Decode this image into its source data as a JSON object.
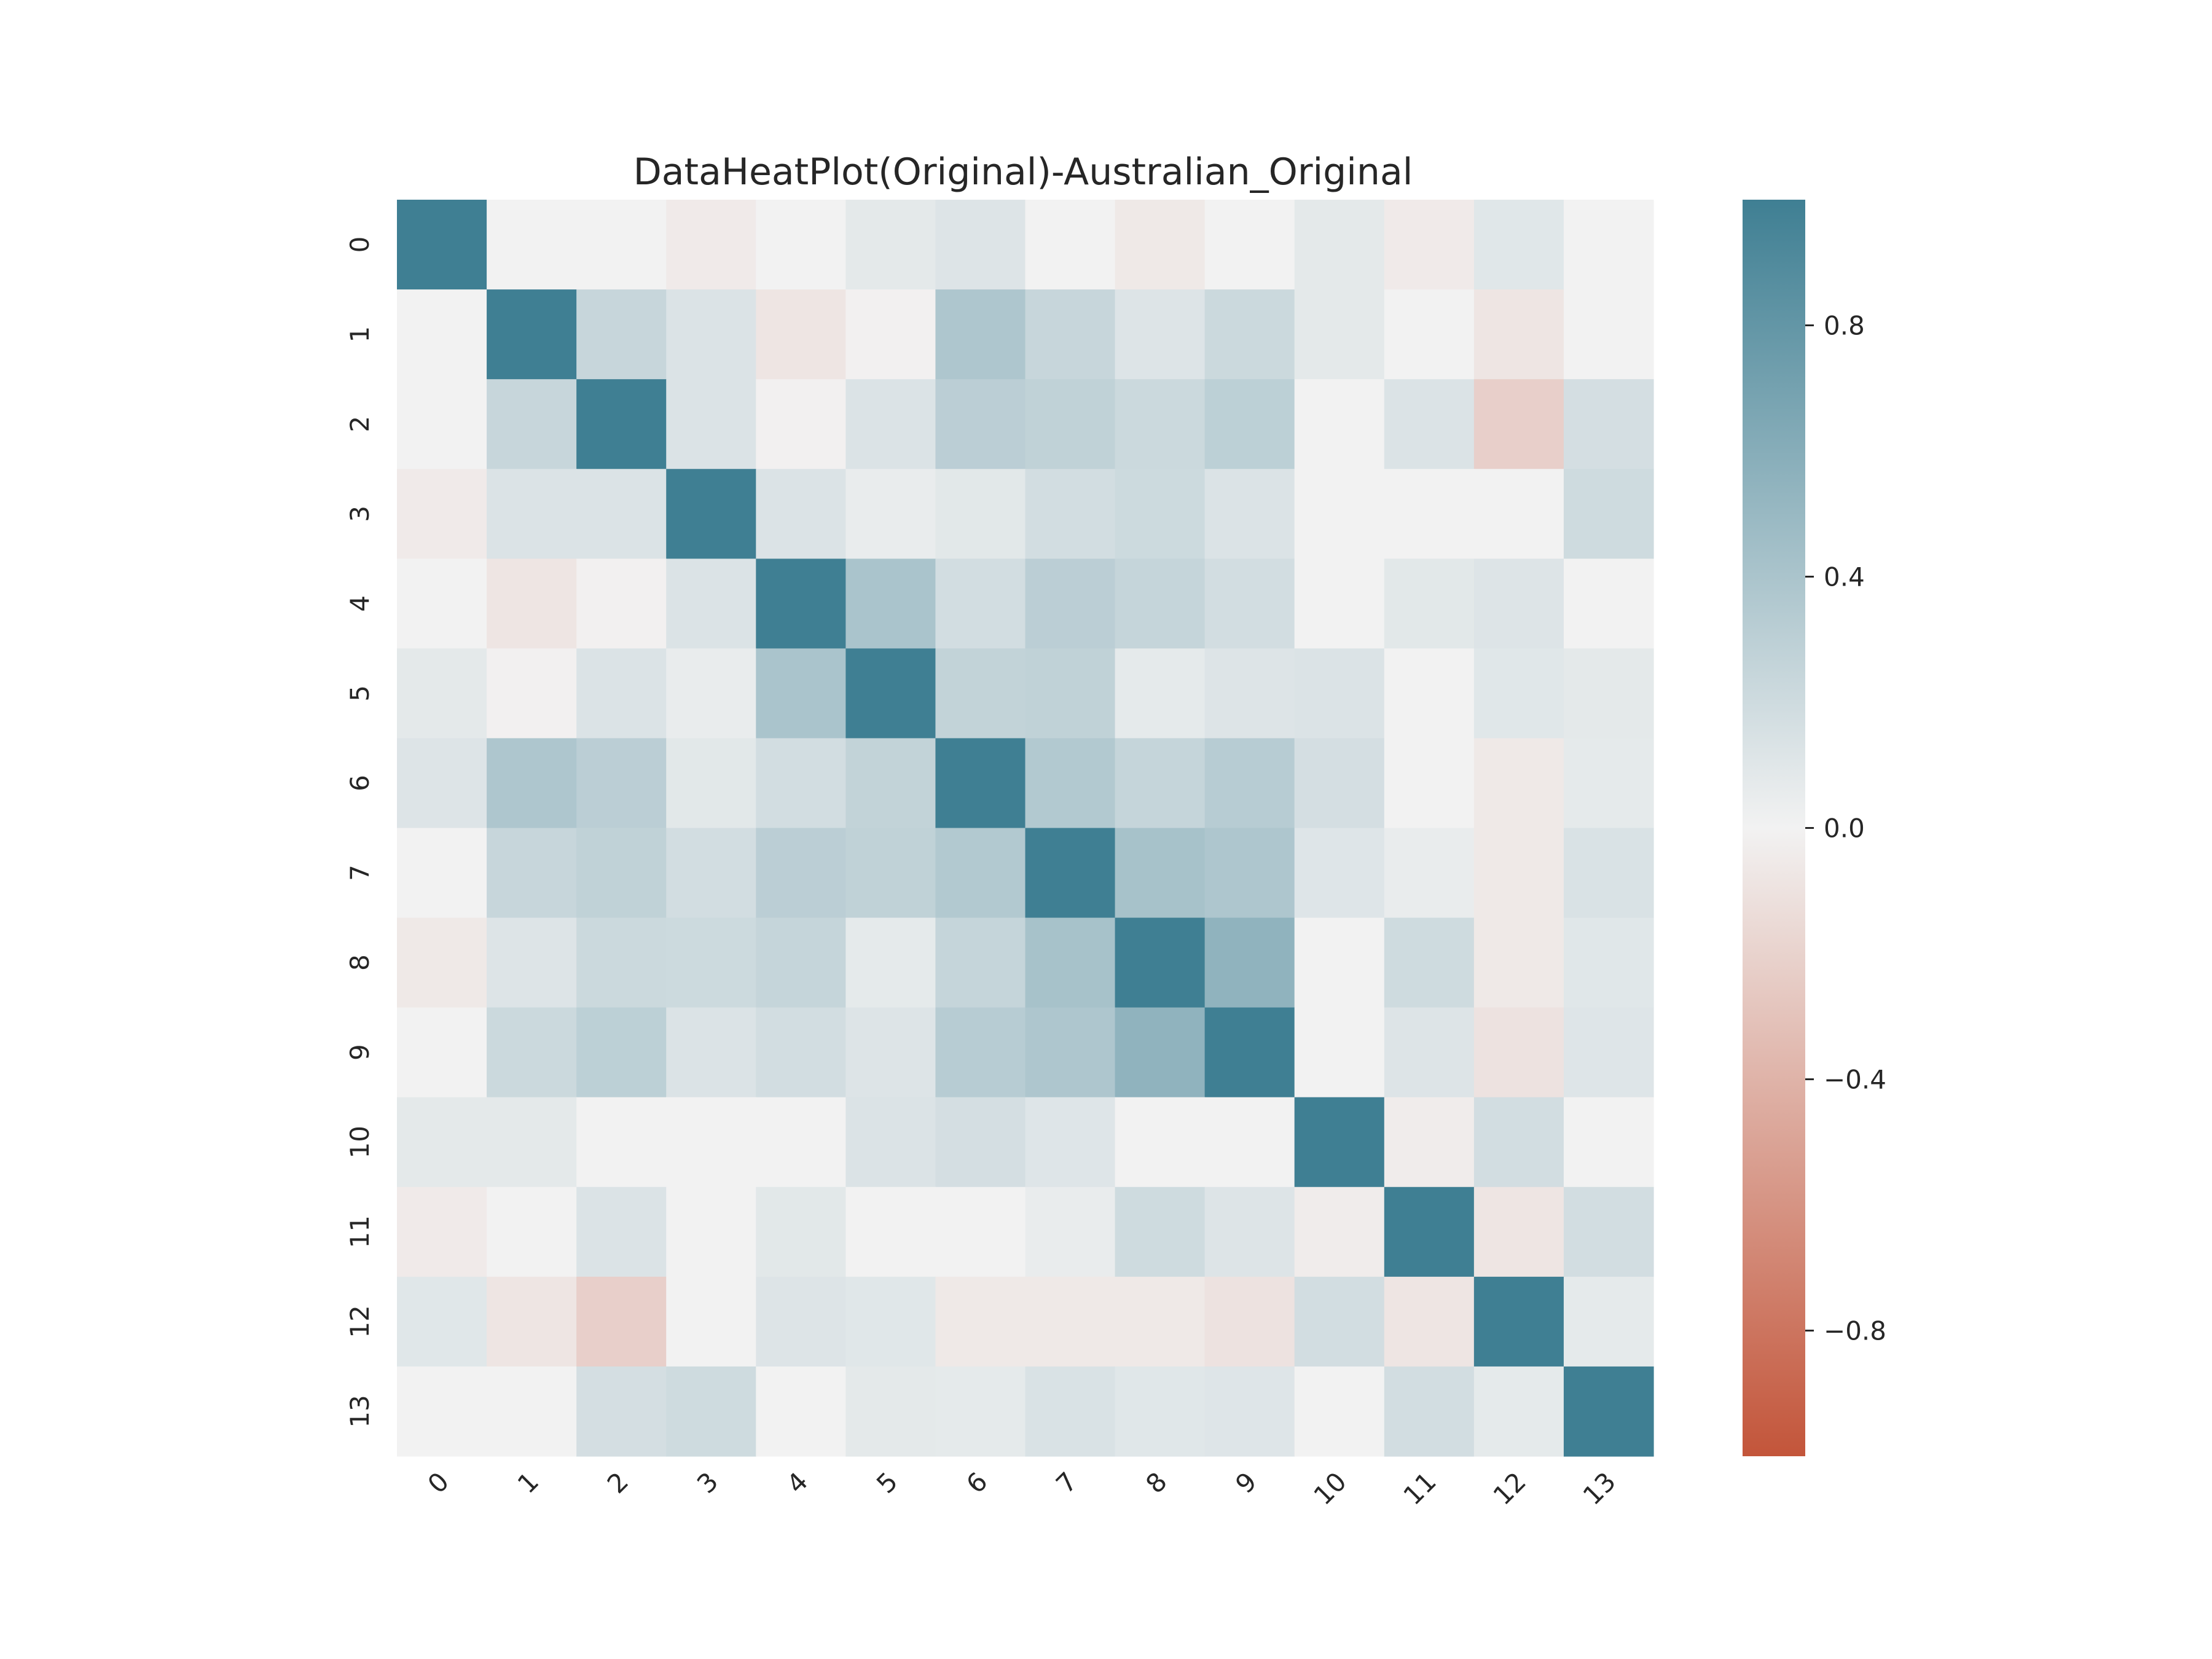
{
  "chart_data": {
    "type": "heatmap",
    "title": "DataHeatPlot(Original)-Australian_Original",
    "x_labels": [
      "0",
      "1",
      "2",
      "3",
      "4",
      "5",
      "6",
      "7",
      "8",
      "9",
      "10",
      "11",
      "12",
      "13"
    ],
    "y_labels": [
      "0",
      "1",
      "2",
      "3",
      "4",
      "5",
      "6",
      "7",
      "8",
      "9",
      "10",
      "11",
      "12",
      "13"
    ],
    "values": [
      [
        1.0,
        0.0,
        0.0,
        -0.05,
        0.0,
        0.08,
        0.12,
        0.0,
        -0.06,
        0.0,
        0.08,
        -0.05,
        0.1,
        0.0
      ],
      [
        0.0,
        1.0,
        0.24,
        0.13,
        -0.08,
        -0.01,
        0.38,
        0.24,
        0.12,
        0.22,
        0.08,
        0.0,
        -0.08,
        0.0
      ],
      [
        0.0,
        0.24,
        1.0,
        0.13,
        -0.01,
        0.13,
        0.31,
        0.28,
        0.22,
        0.3,
        0.0,
        0.13,
        -0.22,
        0.17
      ],
      [
        -0.05,
        0.13,
        0.13,
        1.0,
        0.13,
        0.05,
        0.09,
        0.18,
        0.21,
        0.13,
        0.0,
        0.0,
        0.0,
        0.2
      ],
      [
        0.0,
        -0.08,
        -0.01,
        0.13,
        1.0,
        0.4,
        0.18,
        0.31,
        0.25,
        0.18,
        0.0,
        0.09,
        0.12,
        0.0
      ],
      [
        0.08,
        -0.01,
        0.13,
        0.05,
        0.4,
        1.0,
        0.27,
        0.28,
        0.07,
        0.12,
        0.13,
        0.0,
        0.1,
        0.08
      ],
      [
        0.12,
        0.38,
        0.31,
        0.09,
        0.18,
        0.27,
        1.0,
        0.36,
        0.25,
        0.33,
        0.17,
        0.0,
        -0.06,
        0.07
      ],
      [
        0.0,
        0.24,
        0.28,
        0.18,
        0.31,
        0.28,
        0.36,
        1.0,
        0.42,
        0.38,
        0.11,
        0.05,
        -0.06,
        0.14
      ],
      [
        -0.06,
        0.12,
        0.22,
        0.21,
        0.25,
        0.07,
        0.25,
        0.42,
        1.0,
        0.55,
        0.0,
        0.2,
        -0.06,
        0.1
      ],
      [
        0.0,
        0.22,
        0.3,
        0.13,
        0.18,
        0.12,
        0.33,
        0.38,
        0.55,
        1.0,
        0.0,
        0.12,
        -0.1,
        0.11
      ],
      [
        0.08,
        0.08,
        0.0,
        0.0,
        0.0,
        0.13,
        0.17,
        0.11,
        0.0,
        0.0,
        1.0,
        -0.04,
        0.18,
        0.0
      ],
      [
        -0.05,
        0.0,
        0.13,
        0.0,
        0.09,
        0.0,
        0.0,
        0.05,
        0.2,
        0.12,
        -0.04,
        1.0,
        -0.08,
        0.18
      ],
      [
        0.1,
        -0.08,
        -0.22,
        0.0,
        0.12,
        0.1,
        -0.06,
        -0.06,
        -0.06,
        -0.1,
        0.18,
        -0.08,
        1.0,
        0.07
      ],
      [
        0.0,
        0.0,
        0.17,
        0.2,
        0.0,
        0.08,
        0.07,
        0.14,
        0.1,
        0.11,
        0.0,
        0.18,
        0.07,
        1.0
      ]
    ],
    "vmin": -1,
    "vmax": 1,
    "colormap": {
      "negative": "#c3553a",
      "center": "#f2f2f2",
      "positive": "#3f7f93"
    },
    "colorbar": {
      "ticks": [
        0.8,
        0.4,
        0.0,
        -0.4,
        -0.8
      ],
      "tick_labels": [
        "0.8",
        "0.4",
        "0.0",
        "−0.4",
        "−0.8"
      ]
    }
  }
}
